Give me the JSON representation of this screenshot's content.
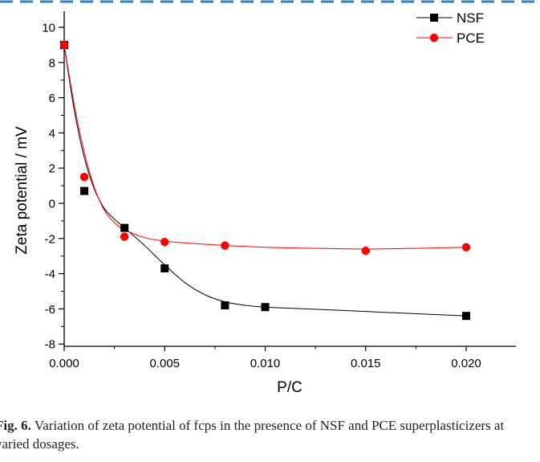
{
  "caption": {
    "label": "Fig. 6.",
    "text": "Variation of zeta potential of fcps in the presence of NSF and PCE superplasticizers at varied dosages."
  },
  "chart_data": {
    "type": "scatter",
    "title": "",
    "xlabel": "P/C",
    "ylabel": "Zeta potential / mV",
    "xlim": [
      0.0,
      0.0225
    ],
    "ylim": [
      -8,
      10.8
    ],
    "xticks": [
      0.0,
      0.005,
      0.01,
      0.015,
      0.02
    ],
    "xtick_labels": [
      "0.000",
      "0.005",
      "0.010",
      "0.015",
      "0.020"
    ],
    "yticks": [
      -8,
      -6,
      -4,
      -2,
      0,
      2,
      4,
      6,
      8,
      10
    ],
    "ytick_labels": [
      "-8",
      "-6",
      "-4",
      "-2",
      "0",
      "2",
      "4",
      "6",
      "8",
      "10"
    ],
    "legend_position": "top-right",
    "series": [
      {
        "name": "NSF",
        "color": "#000000",
        "marker": "square",
        "x": [
          0.0,
          0.001,
          0.003,
          0.005,
          0.008,
          0.01,
          0.02
        ],
        "y": [
          9.0,
          0.7,
          -1.4,
          -3.7,
          -5.8,
          -5.9,
          -6.4
        ],
        "fit": {
          "x": [
            0.0,
            0.0005,
            0.001,
            0.0015,
            0.002,
            0.0025,
            0.003,
            0.004,
            0.005,
            0.006,
            0.007,
            0.008,
            0.009,
            0.01,
            0.012,
            0.015,
            0.018,
            0.02
          ],
          "y": [
            9.0,
            5.3,
            2.6,
            0.8,
            -0.3,
            -0.9,
            -1.4,
            -2.4,
            -3.5,
            -4.5,
            -5.2,
            -5.6,
            -5.8,
            -5.9,
            -6.0,
            -6.15,
            -6.3,
            -6.4
          ]
        }
      },
      {
        "name": "PCE",
        "color": "#ff0000",
        "marker": "circle",
        "x": [
          0.0,
          0.001,
          0.003,
          0.005,
          0.008,
          0.015,
          0.02
        ],
        "y": [
          9.0,
          1.5,
          -1.9,
          -2.2,
          -2.4,
          -2.7,
          -2.5
        ],
        "fit": {
          "x": [
            0.0,
            0.0005,
            0.001,
            0.0015,
            0.002,
            0.0025,
            0.003,
            0.004,
            0.005,
            0.006,
            0.008,
            0.01,
            0.012,
            0.015,
            0.018,
            0.02
          ],
          "y": [
            9.0,
            5.6,
            2.9,
            0.9,
            -0.4,
            -1.1,
            -1.5,
            -1.95,
            -2.15,
            -2.25,
            -2.4,
            -2.5,
            -2.55,
            -2.6,
            -2.55,
            -2.5
          ]
        }
      }
    ]
  }
}
